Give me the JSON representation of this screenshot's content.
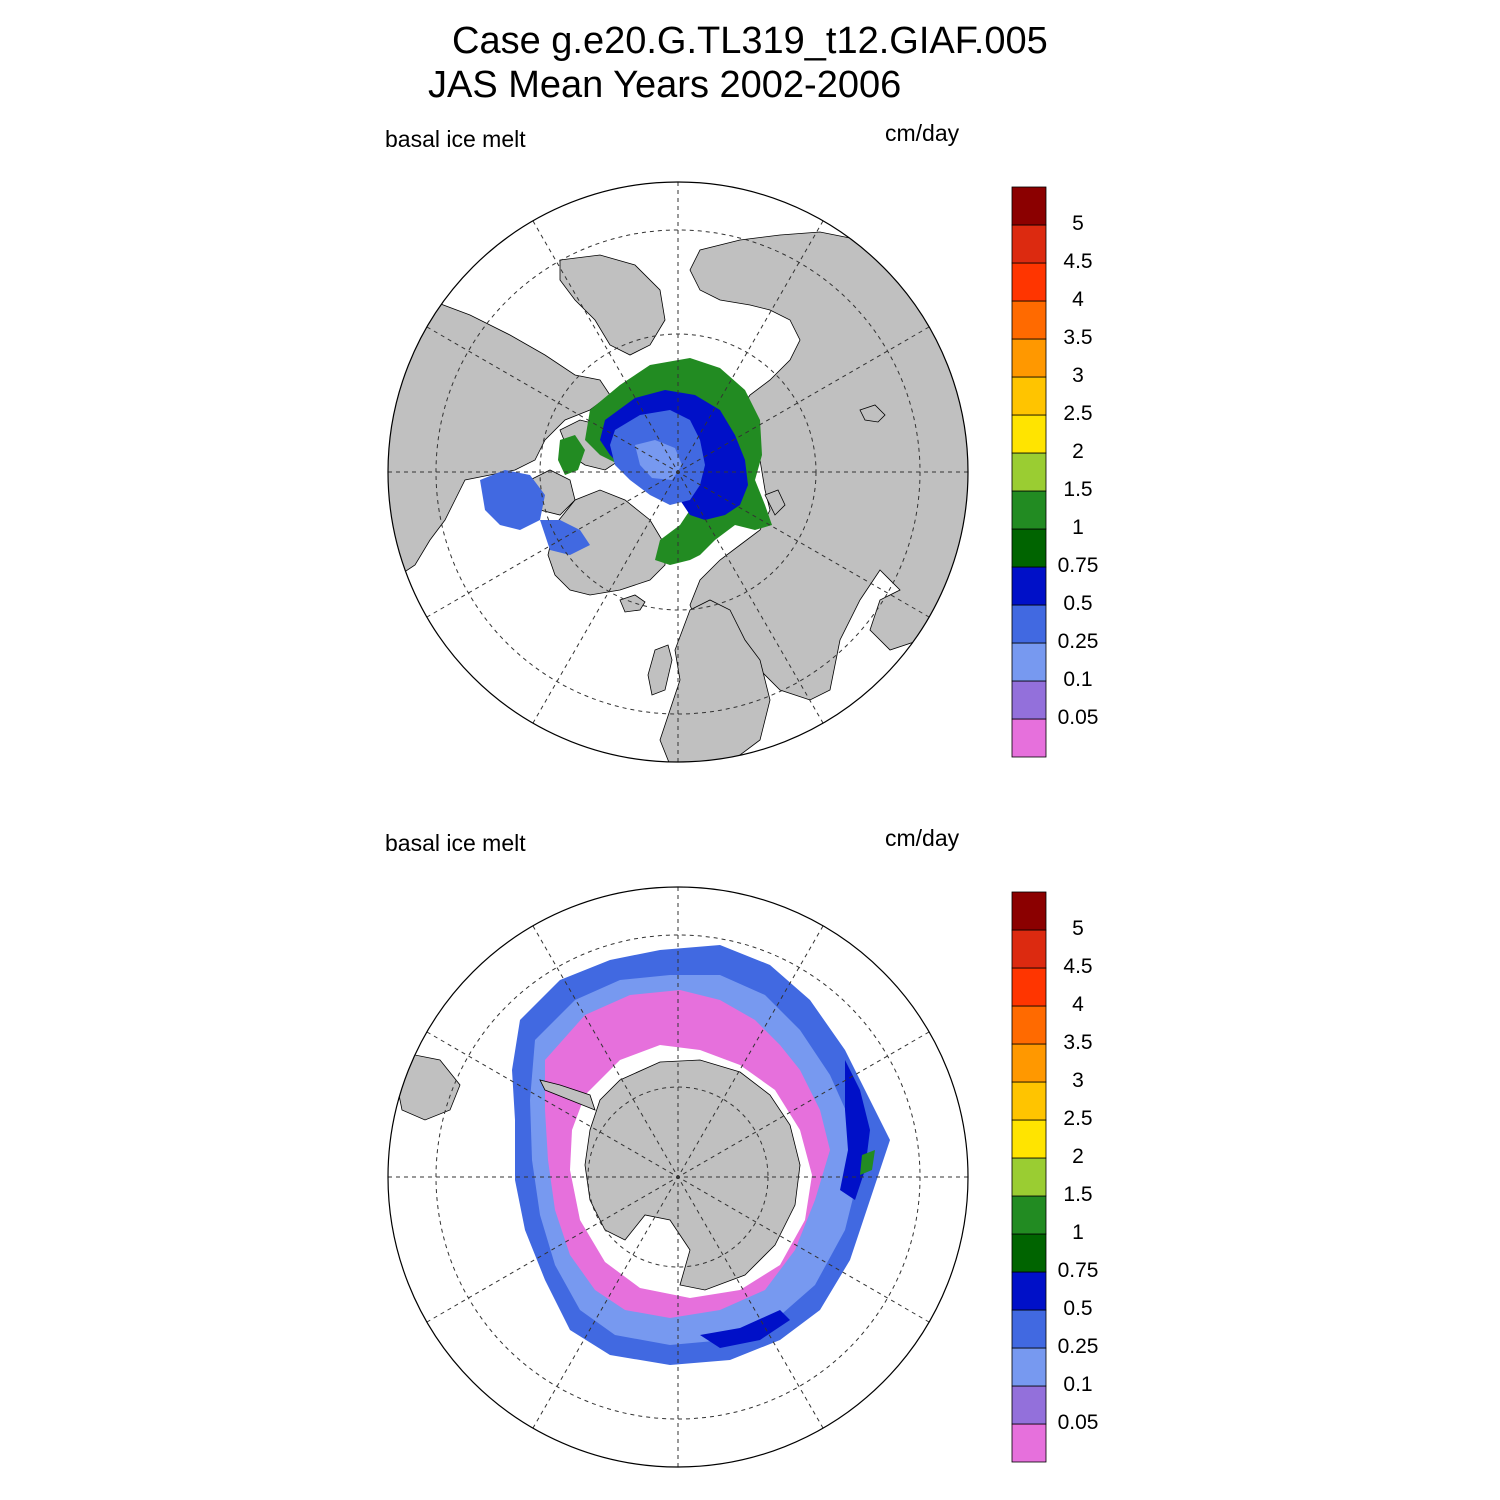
{
  "title_line1": "Case g.e20.G.TL319_t12.GIAF.005",
  "title_line2": "JAS Mean   Years 2002-2006",
  "panels": [
    {
      "hemisphere": "north",
      "left_label": "basal ice melt",
      "right_label": "cm/day"
    },
    {
      "hemisphere": "south",
      "left_label": "basal ice melt",
      "right_label": "cm/day"
    }
  ],
  "colorbar": {
    "levels": [
      "0.05",
      "0.1",
      "0.25",
      "0.5",
      "0.75",
      "1",
      "1.5",
      "2",
      "2.5",
      "3",
      "3.5",
      "4",
      "4.5",
      "5"
    ],
    "colors": [
      "#e670dc",
      "#9370db",
      "#7799f0",
      "#4169e1",
      "#0010c8",
      "#006400",
      "#228b22",
      "#9acd32",
      "#ffe400",
      "#ffc400",
      "#ff9800",
      "#ff6a00",
      "#ff3500",
      "#dc2a10",
      "#8b0000"
    ]
  },
  "map_colors": {
    "land": "#c0c0c0",
    "ocean": "#ffffff"
  }
}
